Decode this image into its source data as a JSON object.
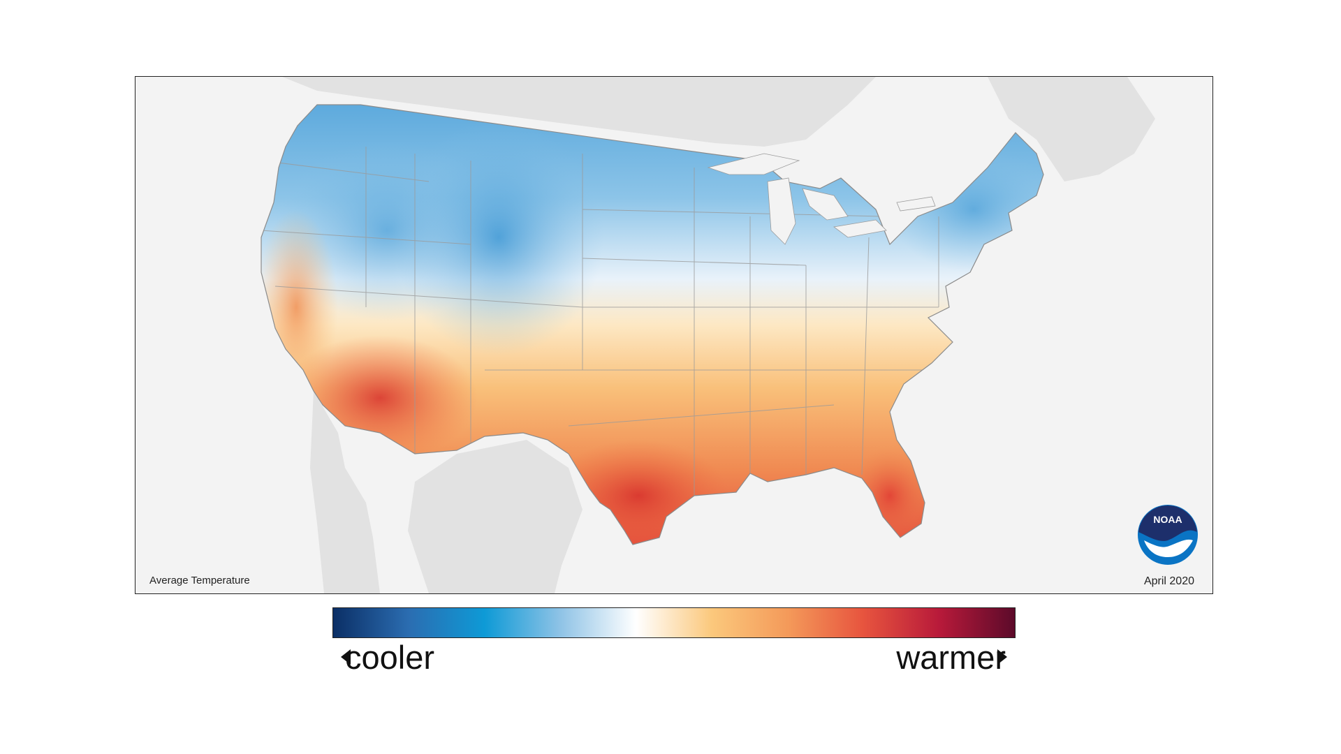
{
  "map": {
    "caption": "Average Temperature",
    "date": "April 2020",
    "logo_text": "NOAA",
    "background_color": "#f3f3f3",
    "land_color": "#e2e2e2"
  },
  "legend": {
    "cooler_label": "cooler",
    "warmer_label": "warmer",
    "gradient_colors": [
      "#0b2f66",
      "#2b6db1",
      "#0e9ad6",
      "#8fc3e6",
      "#ffffff",
      "#fbc87c",
      "#f49a5a",
      "#e7543e",
      "#b81a3a",
      "#5c0a2a"
    ]
  }
}
